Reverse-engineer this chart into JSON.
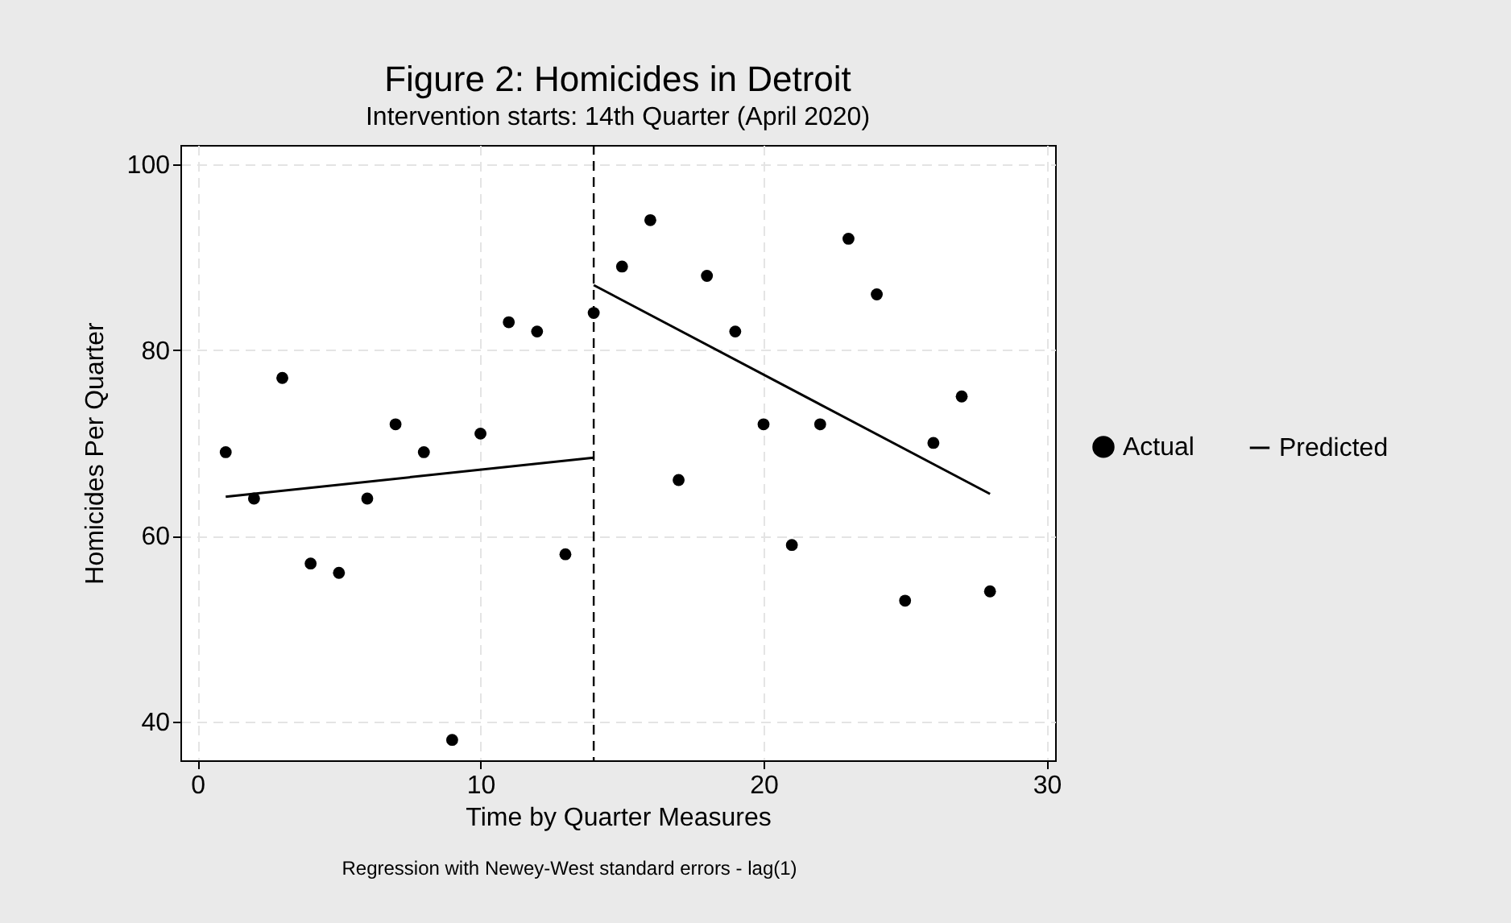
{
  "chart_data": {
    "type": "scatter",
    "title": "Figure 2: Homicides in Detroit",
    "subtitle": "Intervention starts: 14th Quarter (April 2020)",
    "xlabel": "Time by Quarter Measures",
    "ylabel": "Homicides Per Quarter",
    "annotations": [
      "Regression with Newey-West standard errors - lag(1)"
    ],
    "series": [
      {
        "name": "Actual",
        "color": "#000000",
        "marker": "circle",
        "x": [
          1,
          2,
          3,
          4,
          5,
          6,
          7,
          8,
          9,
          10,
          11,
          12,
          13,
          14,
          15,
          16,
          17,
          18,
          19,
          20,
          21,
          22,
          23,
          24,
          25,
          26,
          27,
          28
        ],
        "values": [
          69,
          64,
          77,
          57,
          56,
          64,
          72,
          69,
          38,
          71,
          83,
          82,
          58,
          84,
          89,
          94,
          66,
          88,
          82,
          72,
          59,
          72,
          92,
          86,
          53,
          70,
          75,
          54
        ]
      },
      {
        "name": "Predicted",
        "type": "line",
        "color": "#000000",
        "marker": "none",
        "line_style": "solid",
        "x": [
          1,
          14,
          null,
          14,
          28
        ],
        "values": [
          64.2,
          68.4,
          null,
          87,
          64.5
        ]
      }
    ],
    "ref_lines": [
      {
        "axis": "x",
        "value": 14,
        "label": null,
        "color": "#000000",
        "line_style": "dashed"
      }
    ],
    "xlim": [
      -0.6,
      30.3
    ],
    "ylim": [
      35.8,
      102.1
    ],
    "xticks": [
      0,
      10,
      20,
      30
    ],
    "yticks": [
      40,
      60,
      80,
      100
    ],
    "grid": true,
    "legend": "right"
  }
}
